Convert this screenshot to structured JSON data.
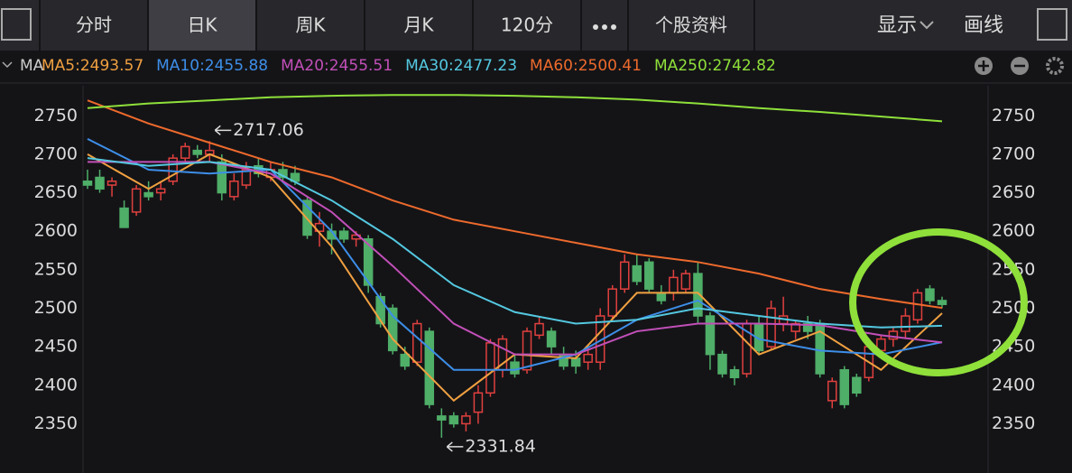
{
  "ui": {
    "tabs": [
      "分时",
      "日K",
      "周K",
      "月K",
      "120分",
      "个股资料"
    ],
    "display": "显示",
    "draw": "画线",
    "ma_label": "MA"
  },
  "chart_data": {
    "type": "candlestick",
    "up_color": "#e0403e",
    "down_color": "#4fae68",
    "open": [
      2665,
      2670,
      2660,
      2630,
      2625,
      2650,
      2650,
      2665,
      2695,
      2705,
      2700,
      2690,
      2645,
      2660,
      2685,
      2670,
      2680,
      2675,
      2640,
      2600,
      2600,
      2600,
      2590,
      2590,
      2515,
      2500,
      2440,
      2430,
      2470,
      2360,
      2360,
      2350,
      2365,
      2390,
      2420,
      2430,
      2420,
      2465,
      2470,
      2440,
      2435,
      2430,
      2430,
      2490,
      2525,
      2555,
      2560,
      2520,
      2520,
      2525,
      2545,
      2490,
      2440,
      2420,
      2415,
      2480,
      2450,
      2480,
      2470,
      2480,
      2480,
      2380,
      2420,
      2410,
      2410,
      2445,
      2460,
      2470,
      2485,
      2525,
      2510
    ],
    "high": [
      2680,
      2680,
      2670,
      2640,
      2660,
      2665,
      2665,
      2700,
      2715,
      2712,
      2717.06,
      2700,
      2675,
      2690,
      2695,
      2690,
      2690,
      2685,
      2645,
      2625,
      2610,
      2605,
      2600,
      2595,
      2520,
      2505,
      2450,
      2485,
      2475,
      2370,
      2365,
      2365,
      2400,
      2460,
      2465,
      2440,
      2475,
      2490,
      2475,
      2450,
      2445,
      2450,
      2500,
      2530,
      2570,
      2570,
      2565,
      2530,
      2550,
      2550,
      2560,
      2495,
      2445,
      2425,
      2485,
      2490,
      2510,
      2515,
      2485,
      2490,
      2485,
      2410,
      2425,
      2415,
      2455,
      2465,
      2475,
      2500,
      2525,
      2530,
      2515
    ],
    "low": [
      2655,
      2650,
      2645,
      2605,
      2620,
      2640,
      2640,
      2660,
      2690,
      2695,
      2690,
      2640,
      2640,
      2655,
      2670,
      2665,
      2665,
      2660,
      2590,
      2580,
      2570,
      2585,
      2580,
      2520,
      2475,
      2440,
      2420,
      2425,
      2370,
      2331.84,
      2345,
      2340,
      2350,
      2385,
      2410,
      2410,
      2415,
      2460,
      2440,
      2420,
      2415,
      2420,
      2420,
      2485,
      2520,
      2530,
      2520,
      2505,
      2510,
      2520,
      2480,
      2420,
      2410,
      2400,
      2410,
      2440,
      2445,
      2470,
      2460,
      2460,
      2410,
      2370,
      2370,
      2385,
      2405,
      2440,
      2450,
      2460,
      2480,
      2505,
      2500
    ],
    "close": [
      2660,
      2655,
      2665,
      2605,
      2655,
      2645,
      2655,
      2695,
      2710,
      2700,
      2705,
      2650,
      2665,
      2680,
      2675,
      2680,
      2670,
      2665,
      2595,
      2610,
      2590,
      2590,
      2595,
      2530,
      2480,
      2445,
      2425,
      2480,
      2375,
      2355,
      2350,
      2360,
      2390,
      2455,
      2460,
      2415,
      2470,
      2480,
      2450,
      2425,
      2425,
      2440,
      2490,
      2525,
      2560,
      2535,
      2525,
      2510,
      2540,
      2545,
      2490,
      2440,
      2415,
      2410,
      2480,
      2445,
      2500,
      2490,
      2480,
      2470,
      2415,
      2405,
      2375,
      2390,
      2450,
      2460,
      2470,
      2490,
      2520,
      2510,
      2505
    ],
    "ma_x": [
      0,
      5,
      10,
      15,
      20,
      25,
      30,
      35,
      40,
      45,
      50,
      55,
      60,
      65,
      70
    ],
    "series": [
      {
        "name": "MA5:2493.57",
        "color": "#f0a040",
        "values": [
          2700,
          2655,
          2700,
          2670,
          2580,
          2460,
          2380,
          2440,
          2435,
          2520,
          2520,
          2440,
          2470,
          2420,
          2493.57
        ]
      },
      {
        "name": "MA10:2455.88",
        "color": "#3d8ee8",
        "values": [
          2720,
          2680,
          2675,
          2680,
          2600,
          2490,
          2420,
          2420,
          2440,
          2485,
          2510,
          2460,
          2445,
          2440,
          2455.88
        ]
      },
      {
        "name": "MA20:2455.51",
        "color": "#c24fb8",
        "values": [
          2690,
          2690,
          2690,
          2675,
          2625,
          2555,
          2480,
          2440,
          2440,
          2470,
          2480,
          2480,
          2478,
          2465,
          2455.51
        ]
      },
      {
        "name": "MA30:2477.23",
        "color": "#54c8e0",
        "values": [
          2695,
          2685,
          2690,
          2680,
          2640,
          2590,
          2530,
          2495,
          2480,
          2485,
          2500,
          2490,
          2480,
          2475,
          2477.23
        ]
      },
      {
        "name": "MA60:2500.41",
        "color": "#ee6a2c",
        "values": [
          2770,
          2740,
          2715,
          2690,
          2670,
          2640,
          2615,
          2600,
          2585,
          2570,
          2560,
          2545,
          2525,
          2512,
          2500.41
        ]
      },
      {
        "name": "MA250:2742.82",
        "color": "#8fe03a",
        "values": [
          2760,
          2766,
          2770,
          2774,
          2776,
          2777,
          2777,
          2776,
          2774,
          2771,
          2766,
          2760,
          2755,
          2749,
          2742.82
        ]
      }
    ],
    "ylim": [
      2286,
      2789
    ],
    "yticks": [
      2350,
      2400,
      2450,
      2500,
      2550,
      2600,
      2650,
      2700,
      2750
    ],
    "grid": false
  }
}
